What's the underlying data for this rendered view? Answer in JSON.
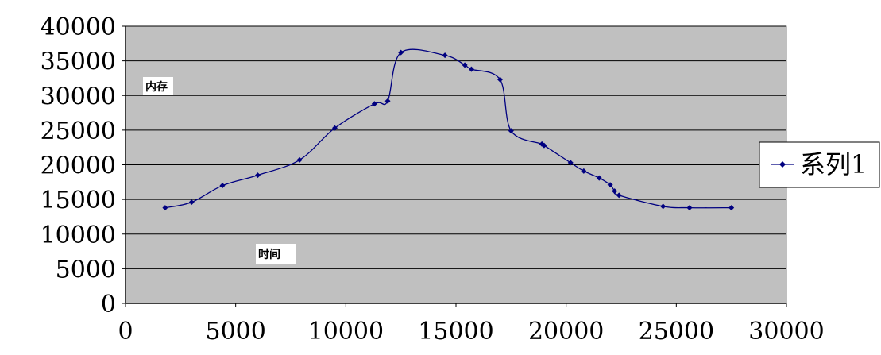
{
  "chart_data": {
    "type": "line",
    "smooth": true,
    "xlim": [
      0,
      30000
    ],
    "ylim": [
      0,
      40000
    ],
    "x_ticks": [
      "0",
      "5000",
      "10000",
      "15000",
      "20000",
      "25000",
      "30000"
    ],
    "y_ticks": [
      "0",
      "5000",
      "10000",
      "15000",
      "20000",
      "25000",
      "30000",
      "35000",
      "40000"
    ],
    "grid": "horizontal",
    "plot_background": "#c0c0c0",
    "line_color": "#000080",
    "legend": {
      "position": "right",
      "entries": [
        "系列1"
      ]
    },
    "annotations": {
      "top_left": "内存",
      "bottom": "时间"
    },
    "series": [
      {
        "name": "系列1",
        "points": [
          [
            1800,
            13800
          ],
          [
            3000,
            14600
          ],
          [
            4400,
            17000
          ],
          [
            6000,
            18500
          ],
          [
            7900,
            20700
          ],
          [
            9500,
            25300
          ],
          [
            11300,
            28800
          ],
          [
            11900,
            29200
          ],
          [
            12500,
            36200
          ],
          [
            14500,
            35800
          ],
          [
            15400,
            34400
          ],
          [
            15700,
            33800
          ],
          [
            17000,
            32300
          ],
          [
            17500,
            24900
          ],
          [
            18900,
            23000
          ],
          [
            19000,
            22800
          ],
          [
            20200,
            20300
          ],
          [
            20800,
            19100
          ],
          [
            21500,
            18100
          ],
          [
            22000,
            17100
          ],
          [
            22200,
            16200
          ],
          [
            22400,
            15600
          ],
          [
            24400,
            14000
          ],
          [
            25600,
            13800
          ],
          [
            27500,
            13800
          ]
        ]
      }
    ]
  }
}
